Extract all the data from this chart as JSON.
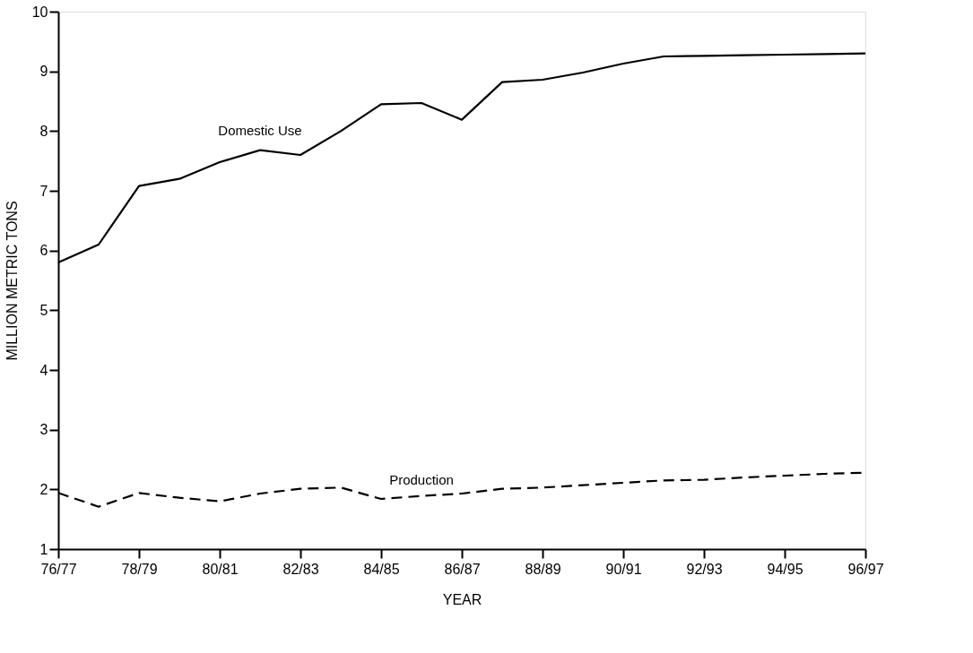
{
  "chart_data": {
    "type": "line",
    "xlabel": "YEAR",
    "ylabel": "MILLION METRIC TONS",
    "categories": [
      "76/77",
      null,
      "78/79",
      null,
      "80/81",
      null,
      "82/83",
      null,
      "84/85",
      null,
      "86/87",
      null,
      "88/89",
      null,
      "90/91",
      null,
      "92/93",
      null,
      "94/95",
      null,
      "96/97"
    ],
    "series": [
      {
        "name": "Domestic Use",
        "color": "#000000",
        "line_style": "solid",
        "values": [
          5.8,
          6.1,
          7.08,
          7.2,
          7.48,
          7.68,
          7.6,
          8.0,
          8.45,
          8.47,
          8.19,
          8.82,
          8.86,
          8.98,
          9.13,
          9.25,
          9.26,
          9.27,
          9.28,
          9.29,
          9.3
        ]
      },
      {
        "name": "Production",
        "color": "#000000",
        "line_style": "dashed",
        "values": [
          1.94,
          1.71,
          1.94,
          1.86,
          1.8,
          1.93,
          2.01,
          2.03,
          1.84,
          1.89,
          1.93,
          2.01,
          2.03,
          2.07,
          2.11,
          2.15,
          2.16,
          2.2,
          2.23,
          2.26,
          2.28
        ]
      }
    ],
    "ylim": [
      1,
      10
    ],
    "yticks": [
      1,
      2,
      3,
      4,
      5,
      6,
      7,
      8,
      9,
      10
    ],
    "grid": false,
    "marker": "none"
  }
}
